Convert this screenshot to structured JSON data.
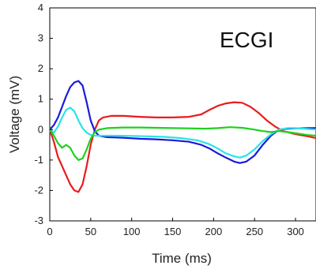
{
  "chart_data": {
    "type": "line",
    "xlabel": "Time (ms)",
    "ylabel": "Voltage (mV)",
    "annotation": "ECGI",
    "xlim": [
      0,
      325
    ],
    "ylim": [
      -3,
      4
    ],
    "xticks": [
      0,
      50,
      100,
      150,
      200,
      250,
      300
    ],
    "yticks": [
      -3,
      -2,
      -1,
      0,
      1,
      2,
      3,
      4
    ],
    "grid": false,
    "series": [
      {
        "color": "#e81c1c",
        "points": [
          [
            0,
            0
          ],
          [
            5,
            -0.4
          ],
          [
            10,
            -0.9
          ],
          [
            15,
            -1.2
          ],
          [
            20,
            -1.5
          ],
          [
            25,
            -1.8
          ],
          [
            30,
            -2.0
          ],
          [
            35,
            -2.05
          ],
          [
            40,
            -1.8
          ],
          [
            45,
            -1.2
          ],
          [
            50,
            -0.5
          ],
          [
            55,
            0.0
          ],
          [
            60,
            0.3
          ],
          [
            65,
            0.4
          ],
          [
            75,
            0.45
          ],
          [
            90,
            0.45
          ],
          [
            110,
            0.42
          ],
          [
            130,
            0.4
          ],
          [
            150,
            0.4
          ],
          [
            170,
            0.42
          ],
          [
            185,
            0.5
          ],
          [
            195,
            0.65
          ],
          [
            205,
            0.78
          ],
          [
            215,
            0.86
          ],
          [
            225,
            0.9
          ],
          [
            235,
            0.88
          ],
          [
            245,
            0.75
          ],
          [
            255,
            0.55
          ],
          [
            265,
            0.3
          ],
          [
            275,
            0.1
          ],
          [
            285,
            -0.05
          ],
          [
            300,
            -0.15
          ],
          [
            315,
            -0.22
          ],
          [
            325,
            -0.28
          ]
        ]
      },
      {
        "color": "#1a1adc",
        "points": [
          [
            0,
            0
          ],
          [
            5,
            0.15
          ],
          [
            10,
            0.4
          ],
          [
            15,
            0.75
          ],
          [
            20,
            1.1
          ],
          [
            25,
            1.4
          ],
          [
            30,
            1.55
          ],
          [
            35,
            1.6
          ],
          [
            40,
            1.45
          ],
          [
            45,
            0.9
          ],
          [
            50,
            0.3
          ],
          [
            55,
            -0.05
          ],
          [
            60,
            -0.2
          ],
          [
            70,
            -0.25
          ],
          [
            90,
            -0.27
          ],
          [
            110,
            -0.3
          ],
          [
            130,
            -0.32
          ],
          [
            150,
            -0.35
          ],
          [
            170,
            -0.4
          ],
          [
            185,
            -0.5
          ],
          [
            195,
            -0.62
          ],
          [
            205,
            -0.78
          ],
          [
            215,
            -0.92
          ],
          [
            225,
            -1.05
          ],
          [
            232,
            -1.1
          ],
          [
            240,
            -1.05
          ],
          [
            250,
            -0.85
          ],
          [
            260,
            -0.5
          ],
          [
            270,
            -0.2
          ],
          [
            280,
            0.0
          ],
          [
            290,
            0.03
          ],
          [
            300,
            0.04
          ],
          [
            315,
            0.05
          ],
          [
            325,
            0.05
          ]
        ]
      },
      {
        "color": "#29e3e8",
        "points": [
          [
            0,
            0
          ],
          [
            5,
            -0.1
          ],
          [
            10,
            0.1
          ],
          [
            15,
            0.4
          ],
          [
            20,
            0.65
          ],
          [
            25,
            0.72
          ],
          [
            30,
            0.6
          ],
          [
            35,
            0.3
          ],
          [
            40,
            0.05
          ],
          [
            45,
            -0.1
          ],
          [
            50,
            -0.18
          ],
          [
            55,
            -0.2
          ],
          [
            65,
            -0.2
          ],
          [
            80,
            -0.2
          ],
          [
            100,
            -0.21
          ],
          [
            120,
            -0.22
          ],
          [
            140,
            -0.24
          ],
          [
            160,
            -0.28
          ],
          [
            180,
            -0.35
          ],
          [
            195,
            -0.48
          ],
          [
            205,
            -0.62
          ],
          [
            215,
            -0.78
          ],
          [
            225,
            -0.88
          ],
          [
            232,
            -0.92
          ],
          [
            240,
            -0.85
          ],
          [
            250,
            -0.65
          ],
          [
            260,
            -0.38
          ],
          [
            270,
            -0.15
          ],
          [
            280,
            0.0
          ],
          [
            290,
            0.05
          ],
          [
            300,
            0.05
          ],
          [
            315,
            0.02
          ],
          [
            325,
            0.0
          ]
        ]
      },
      {
        "color": "#1cd21c",
        "points": [
          [
            0,
            0
          ],
          [
            5,
            -0.2
          ],
          [
            10,
            -0.45
          ],
          [
            15,
            -0.6
          ],
          [
            20,
            -0.5
          ],
          [
            25,
            -0.6
          ],
          [
            30,
            -0.85
          ],
          [
            35,
            -1.0
          ],
          [
            40,
            -0.95
          ],
          [
            45,
            -0.65
          ],
          [
            50,
            -0.3
          ],
          [
            55,
            -0.08
          ],
          [
            60,
            0.0
          ],
          [
            70,
            0.05
          ],
          [
            90,
            0.07
          ],
          [
            110,
            0.07
          ],
          [
            130,
            0.06
          ],
          [
            150,
            0.05
          ],
          [
            170,
            0.04
          ],
          [
            190,
            0.03
          ],
          [
            205,
            0.05
          ],
          [
            220,
            0.08
          ],
          [
            235,
            0.06
          ],
          [
            250,
            0.0
          ],
          [
            260,
            -0.05
          ],
          [
            270,
            -0.08
          ],
          [
            280,
            -0.05
          ],
          [
            290,
            -0.08
          ],
          [
            300,
            -0.12
          ],
          [
            315,
            -0.18
          ],
          [
            325,
            -0.2
          ]
        ]
      }
    ]
  }
}
